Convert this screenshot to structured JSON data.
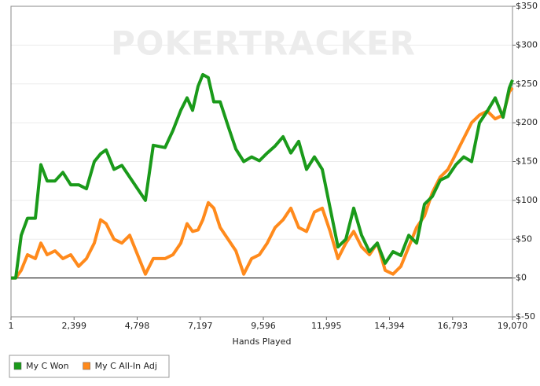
{
  "chart_data": {
    "type": "line",
    "watermark": "POKERTRACKER",
    "x_label": "Hands Played",
    "x": [
      1,
      180,
      390,
      629,
      928,
      1137,
      1376,
      1675,
      1974,
      2273,
      2572,
      2870,
      3169,
      3408,
      3618,
      3917,
      4216,
      4515,
      4813,
      5112,
      5411,
      5860,
      6159,
      6457,
      6697,
      6906,
      7115,
      7295,
      7504,
      7713,
      7953,
      8252,
      8551,
      8850,
      9149,
      9447,
      9746,
      10045,
      10344,
      10642,
      10941,
      11240,
      11539,
      11838,
      12136,
      12435,
      12734,
      13033,
      13332,
      13631,
      13930,
      14228,
      14527,
      14826,
      15125,
      15424,
      15723,
      16022,
      16321,
      16619,
      16918,
      17217,
      17516,
      17815,
      18114,
      18413,
      18711,
      18951,
      19070
    ],
    "series": [
      {
        "name": "My C All-In Adj",
        "color": "#ff8a1c",
        "values": [
          0,
          0,
          10,
          30,
          25,
          45,
          30,
          35,
          25,
          30,
          15,
          25,
          45,
          75,
          70,
          50,
          45,
          55,
          30,
          5,
          25,
          25,
          30,
          45,
          70,
          60,
          62,
          75,
          97,
          90,
          65,
          50,
          35,
          5,
          25,
          30,
          45,
          65,
          75,
          90,
          65,
          60,
          85,
          90,
          60,
          25,
          45,
          60,
          40,
          30,
          45,
          10,
          5,
          15,
          40,
          65,
          80,
          110,
          130,
          140,
          160,
          180,
          200,
          210,
          215,
          205,
          210,
          240,
          245
        ]
      },
      {
        "name": "My C Won",
        "color": "#1a9a1a",
        "values": [
          0,
          0,
          55,
          77,
          77,
          146,
          125,
          125,
          136,
          120,
          120,
          115,
          150,
          160,
          165,
          140,
          145,
          130,
          115,
          100,
          171,
          168,
          190,
          216,
          232,
          216,
          247,
          262,
          258,
          227,
          227,
          196,
          166,
          150,
          156,
          151,
          161,
          170,
          182,
          161,
          176,
          140,
          156,
          140,
          90,
          40,
          50,
          90,
          55,
          34,
          45,
          19,
          34,
          29,
          55,
          45,
          95,
          105,
          126,
          131,
          146,
          156,
          150,
          200,
          215,
          232,
          207,
          245,
          255
        ]
      }
    ],
    "xlim": [
      1,
      19070
    ],
    "xticks": [
      1,
      {
        "value": 2399,
        "label": "2,399"
      },
      {
        "value": 4798,
        "label": "4,798"
      },
      {
        "value": 7197,
        "label": "7,197"
      },
      {
        "value": 9596,
        "label": "9,596"
      },
      {
        "value": 11995,
        "label": "11,995"
      },
      {
        "value": 14394,
        "label": "14,394"
      },
      {
        "value": 16793,
        "label": "16,793"
      },
      {
        "value": 19070,
        "label": "19,070"
      }
    ],
    "ylim": [
      -50,
      350
    ],
    "yticks": [
      {
        "value": -50,
        "label": "$-50"
      },
      {
        "value": 0,
        "label": "$0"
      },
      {
        "value": 50,
        "label": "$50"
      },
      {
        "value": 100,
        "label": "$100"
      },
      {
        "value": 150,
        "label": "$150"
      },
      {
        "value": 200,
        "label": "$200"
      },
      {
        "value": 250,
        "label": "$250"
      },
      {
        "value": 300,
        "label": "$300"
      },
      {
        "value": 350,
        "label": "$350"
      }
    ],
    "grid": true,
    "legend": "bottom-left"
  }
}
